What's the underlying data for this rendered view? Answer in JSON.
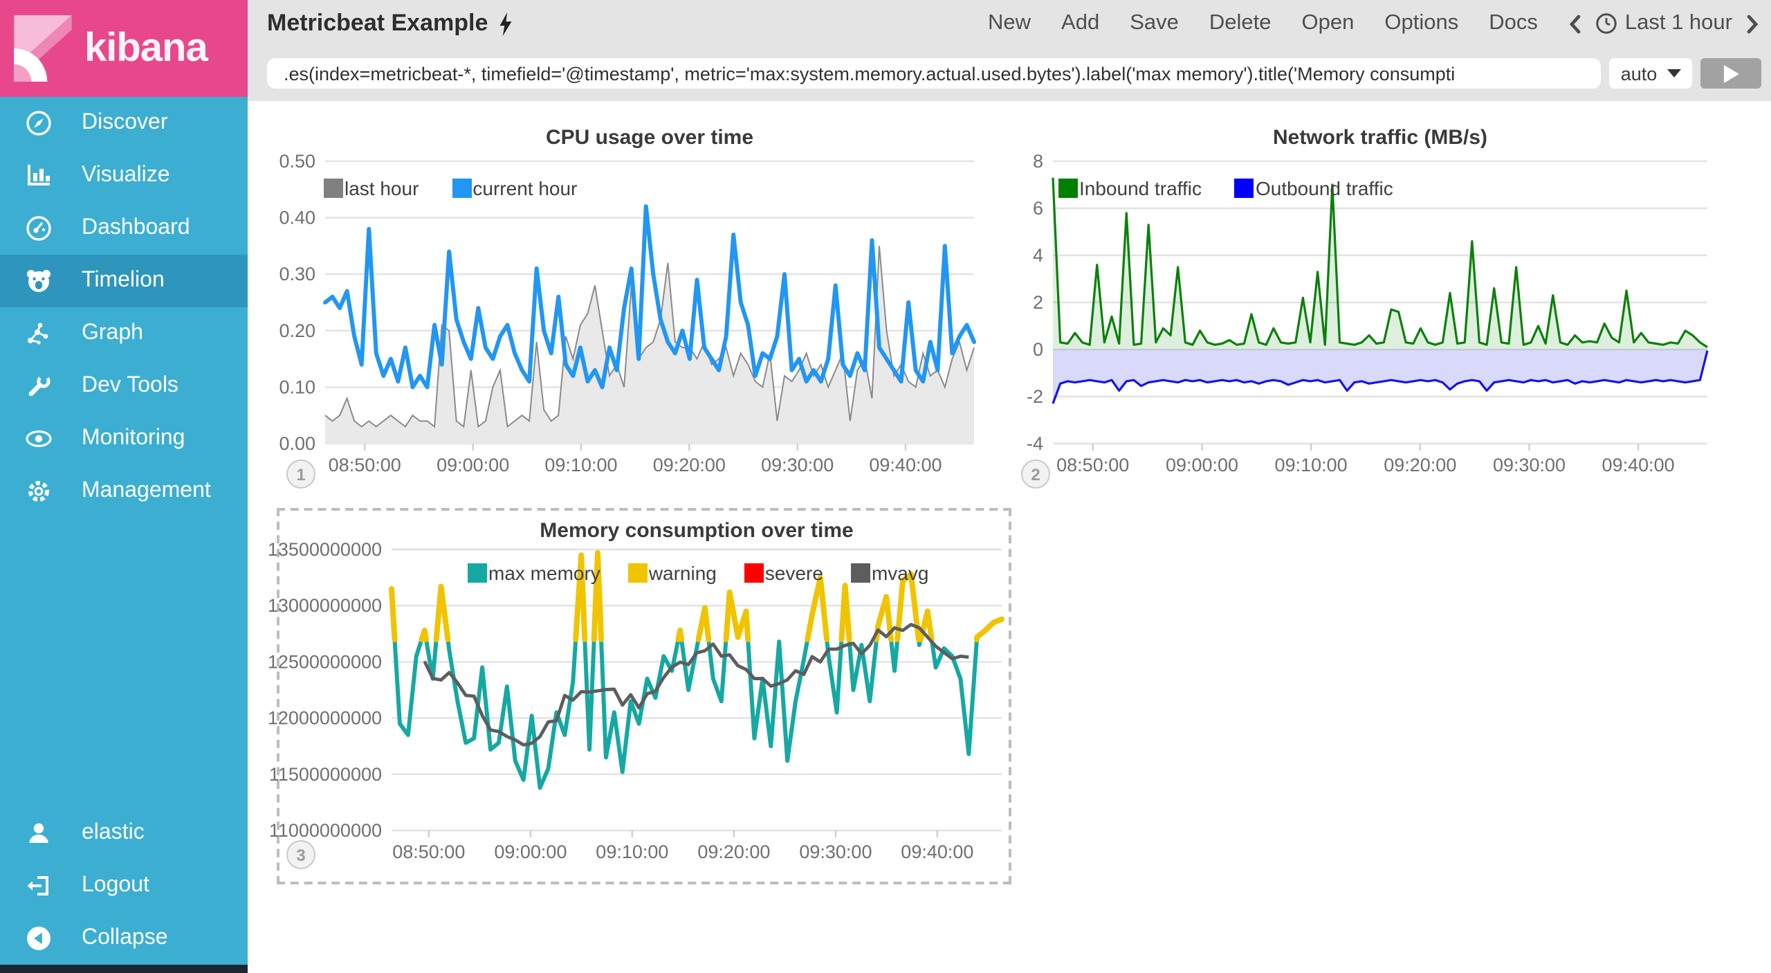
{
  "app": {
    "brand": "kibana"
  },
  "colors": {
    "sidebar_bg": "#3caed2",
    "sidebar_active_bg": "#2e96bc",
    "brand_pink": "#e8488b",
    "header_bg": "#e4e4e4",
    "grid_line": "#e2e2e2"
  },
  "sidebar": {
    "items": [
      {
        "label": "Discover",
        "icon": "compass-icon",
        "active": false
      },
      {
        "label": "Visualize",
        "icon": "bar-chart-icon",
        "active": false
      },
      {
        "label": "Dashboard",
        "icon": "gauge-icon",
        "active": false
      },
      {
        "label": "Timelion",
        "icon": "sea-lion-icon",
        "active": true
      },
      {
        "label": "Graph",
        "icon": "graph-icon",
        "active": false
      },
      {
        "label": "Dev Tools",
        "icon": "wrench-icon",
        "active": false
      },
      {
        "label": "Monitoring",
        "icon": "eye-icon",
        "active": false
      },
      {
        "label": "Management",
        "icon": "gear-icon",
        "active": false
      }
    ],
    "footer": [
      {
        "label": "elastic",
        "icon": "user-icon"
      },
      {
        "label": "Logout",
        "icon": "logout-icon"
      },
      {
        "label": "Collapse",
        "icon": "collapse-icon"
      }
    ]
  },
  "topbar": {
    "title": "Metricbeat Example",
    "menu": [
      "New",
      "Add",
      "Save",
      "Delete",
      "Open",
      "Options",
      "Docs"
    ],
    "time_range": "Last 1 hour"
  },
  "querybar": {
    "value": ".es(index=metricbeat-*, timefield='@timestamp', metric='max:system.memory.actual.used.bytes').label('max memory').title('Memory consumpti",
    "interval_value": "auto"
  },
  "chart_data": [
    {
      "id": "cpu",
      "type": "line",
      "title": "CPU usage over time",
      "badge": "1",
      "ylim": [
        0,
        0.5
      ],
      "yticks": [
        0,
        0.1,
        0.2,
        0.3,
        0.4,
        0.5
      ],
      "ytick_labels": [
        "0.00",
        "0.10",
        "0.20",
        "0.30",
        "0.40",
        "0.50"
      ],
      "xtick_labels": [
        "08:50:00",
        "09:00:00",
        "09:10:00",
        "09:20:00",
        "09:30:00",
        "09:40:00"
      ],
      "series": [
        {
          "name": "last hour",
          "type": "area",
          "color": "#8a8a8a",
          "legend_color": "#808080",
          "fill": "#e9e9e9",
          "values": [
            0.05,
            0.04,
            0.05,
            0.08,
            0.04,
            0.03,
            0.04,
            0.03,
            0.04,
            0.05,
            0.04,
            0.03,
            0.05,
            0.04,
            0.04,
            0.03,
            0.21,
            0.2,
            0.04,
            0.03,
            0.13,
            0.03,
            0.04,
            0.1,
            0.13,
            0.03,
            0.04,
            0.05,
            0.04,
            0.18,
            0.06,
            0.04,
            0.05,
            0.19,
            0.15,
            0.21,
            0.23,
            0.28,
            0.2,
            0.12,
            0.14,
            0.1,
            0.28,
            0.15,
            0.17,
            0.18,
            0.22,
            0.32,
            0.18,
            0.17,
            0.17,
            0.15,
            0.18,
            0.14,
            0.15,
            0.17,
            0.12,
            0.16,
            0.14,
            0.11,
            0.1,
            0.16,
            0.04,
            0.12,
            0.11,
            0.13,
            0.16,
            0.12,
            0.14,
            0.1,
            0.13,
            0.16,
            0.04,
            0.13,
            0.15,
            0.08,
            0.35,
            0.2,
            0.12,
            0.14,
            0.11,
            0.1,
            0.16,
            0.12,
            0.13,
            0.1,
            0.15,
            0.18,
            0.13,
            0.17
          ]
        },
        {
          "name": "current hour",
          "type": "line",
          "color": "#2196f3",
          "legend_color": "#2196f3",
          "values": [
            0.25,
            0.26,
            0.24,
            0.27,
            0.19,
            0.14,
            0.38,
            0.16,
            0.12,
            0.15,
            0.11,
            0.17,
            0.1,
            0.12,
            0.1,
            0.21,
            0.14,
            0.34,
            0.22,
            0.18,
            0.15,
            0.24,
            0.17,
            0.15,
            0.19,
            0.21,
            0.16,
            0.13,
            0.11,
            0.31,
            0.2,
            0.16,
            0.26,
            0.14,
            0.12,
            0.17,
            0.11,
            0.13,
            0.1,
            0.17,
            0.13,
            0.24,
            0.31,
            0.15,
            0.42,
            0.3,
            0.22,
            0.18,
            0.16,
            0.2,
            0.15,
            0.29,
            0.17,
            0.15,
            0.13,
            0.19,
            0.37,
            0.25,
            0.21,
            0.12,
            0.16,
            0.15,
            0.19,
            0.3,
            0.13,
            0.15,
            0.11,
            0.13,
            0.11,
            0.15,
            0.28,
            0.14,
            0.12,
            0.16,
            0.13,
            0.36,
            0.17,
            0.15,
            0.13,
            0.11,
            0.25,
            0.13,
            0.11,
            0.18,
            0.13,
            0.35,
            0.16,
            0.19,
            0.21,
            0.18
          ]
        }
      ]
    },
    {
      "id": "network",
      "type": "area",
      "title": "Network traffic (MB/s)",
      "badge": "2",
      "ylim": [
        -4,
        8
      ],
      "yticks": [
        -4,
        -2,
        0,
        2,
        4,
        6,
        8
      ],
      "ytick_labels": [
        "-4",
        "-2",
        "0",
        "2",
        "4",
        "6",
        "8"
      ],
      "xtick_labels": [
        "08:50:00",
        "09:00:00",
        "09:10:00",
        "09:20:00",
        "09:30:00",
        "09:40:00"
      ],
      "series": [
        {
          "name": "Inbound traffic",
          "type": "area",
          "color": "#0a800a",
          "legend_color": "#008000",
          "fill": "rgba(0,128,0,0.13)",
          "values": [
            7.3,
            0.3,
            0.25,
            0.7,
            0.3,
            0.2,
            3.6,
            0.3,
            1.4,
            0.25,
            5.8,
            0.2,
            0.25,
            5.3,
            0.3,
            0.9,
            0.6,
            3.5,
            0.3,
            0.2,
            0.8,
            0.3,
            0.2,
            0.25,
            0.4,
            0.2,
            0.25,
            1.5,
            0.3,
            0.2,
            0.9,
            0.3,
            0.25,
            0.3,
            2.2,
            0.3,
            3.3,
            0.2,
            7.0,
            0.3,
            0.25,
            0.2,
            0.3,
            0.6,
            0.25,
            0.3,
            1.7,
            1.6,
            0.3,
            0.25,
            0.9,
            0.3,
            0.2,
            0.3,
            2.4,
            0.25,
            0.3,
            4.6,
            0.3,
            0.2,
            2.6,
            0.3,
            0.25,
            3.5,
            0.2,
            0.3,
            1.0,
            0.25,
            2.3,
            0.3,
            0.2,
            0.6,
            0.3,
            0.35,
            0.3,
            1.1,
            0.5,
            0.3,
            2.5,
            0.3,
            0.7,
            0.3,
            0.25,
            0.2,
            0.3,
            0.25,
            0.8,
            0.6,
            0.3,
            0.1
          ]
        },
        {
          "name": "Outbound traffic",
          "type": "area",
          "color": "#1414eb",
          "legend_color": "#0000ff",
          "fill": "rgba(80,80,240,0.22)",
          "values": [
            -2.3,
            -1.45,
            -1.35,
            -1.4,
            -1.35,
            -1.3,
            -1.35,
            -1.4,
            -1.3,
            -1.75,
            -1.35,
            -1.3,
            -1.55,
            -1.4,
            -1.35,
            -1.3,
            -1.35,
            -1.4,
            -1.3,
            -1.35,
            -1.3,
            -1.4,
            -1.35,
            -1.3,
            -1.35,
            -1.3,
            -1.4,
            -1.35,
            -1.45,
            -1.35,
            -1.3,
            -1.35,
            -1.5,
            -1.4,
            -1.3,
            -1.35,
            -1.3,
            -1.4,
            -1.35,
            -1.3,
            -1.75,
            -1.4,
            -1.35,
            -1.45,
            -1.4,
            -1.35,
            -1.3,
            -1.35,
            -1.4,
            -1.35,
            -1.3,
            -1.35,
            -1.3,
            -1.4,
            -1.7,
            -1.45,
            -1.35,
            -1.3,
            -1.35,
            -1.75,
            -1.4,
            -1.35,
            -1.3,
            -1.35,
            -1.4,
            -1.3,
            -1.35,
            -1.3,
            -1.4,
            -1.35,
            -1.3,
            -1.45,
            -1.35,
            -1.4,
            -1.35,
            -1.3,
            -1.35,
            -1.4,
            -1.3,
            -1.35,
            -1.4,
            -1.35,
            -1.3,
            -1.35,
            -1.3,
            -1.35,
            -1.4,
            -1.35,
            -1.3,
            -0.05
          ]
        }
      ]
    },
    {
      "id": "memory",
      "type": "line",
      "title": "Memory consumption over time",
      "badge": "3",
      "unit": "bytes, values stored in billions (1e9)",
      "ylim": [
        11,
        13.5
      ],
      "yticks": [
        11,
        11.5,
        12,
        12.5,
        13,
        13.5
      ],
      "ytick_labels": [
        "11000000000",
        "11500000000",
        "12000000000",
        "12500000000",
        "13000000000",
        "13500000000"
      ],
      "xtick_labels": [
        "08:50:00",
        "09:00:00",
        "09:10:00",
        "09:20:00",
        "09:30:00",
        "09:40:00"
      ],
      "series": [
        {
          "name": "max memory",
          "type": "line",
          "color": "#16a8a2",
          "legend_color": "#16a8a2",
          "values_billions": [
            13.15,
            11.95,
            11.85,
            12.55,
            12.78,
            12.35,
            13.17,
            12.6,
            12.15,
            11.78,
            11.82,
            12.45,
            11.72,
            11.78,
            12.28,
            11.62,
            11.45,
            12.02,
            11.38,
            11.55,
            12.05,
            11.85,
            12.32,
            13.45,
            11.72,
            13.47,
            11.65,
            12.05,
            11.52,
            12.15,
            11.95,
            12.35,
            12.18,
            12.55,
            12.42,
            12.78,
            12.25,
            12.62,
            12.98,
            12.35,
            12.15,
            13.12,
            12.72,
            12.95,
            11.82,
            12.35,
            11.75,
            12.68,
            11.62,
            12.15,
            12.52,
            12.92,
            13.25,
            12.55,
            12.05,
            13.18,
            12.25,
            12.65,
            12.15,
            12.82,
            13.08,
            12.42,
            13.22,
            13.28,
            12.65,
            12.95,
            12.45,
            12.62,
            12.55,
            12.35,
            11.68,
            12.72,
            12.78,
            12.85,
            12.88
          ]
        },
        {
          "name": "warning",
          "type": "threshold",
          "value_billions": 12.7,
          "color": "#f0c400",
          "legend_color": "#f0c400"
        },
        {
          "name": "severe",
          "type": "threshold",
          "value_billions": 13.5,
          "color": "#ff0000",
          "legend_color": "#ff0000"
        },
        {
          "name": "mvavg",
          "type": "moving_average",
          "window": 9,
          "color": "#5d5d5d",
          "legend_color": "#5d5d5d"
        }
      ]
    }
  ]
}
